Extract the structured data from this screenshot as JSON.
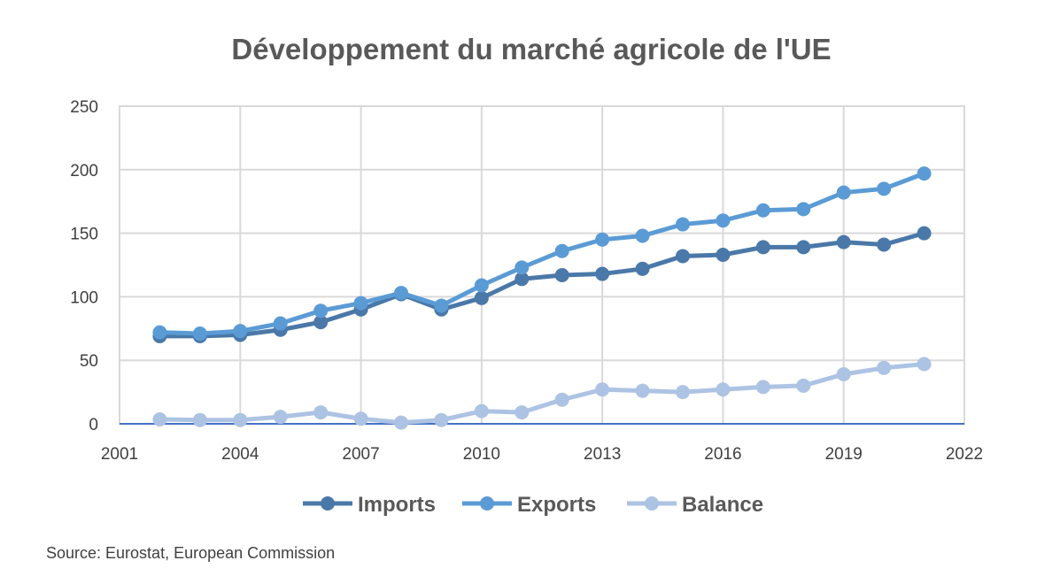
{
  "chart_data": {
    "type": "line",
    "title": "Développement du marché agricole de l'UE",
    "source": "Source: Eurostat, European Commission",
    "x": [
      2002,
      2003,
      2004,
      2005,
      2006,
      2007,
      2008,
      2009,
      2010,
      2011,
      2012,
      2013,
      2014,
      2015,
      2016,
      2017,
      2018,
      2019,
      2020,
      2021
    ],
    "series": [
      {
        "name": "Imports",
        "color": "#4a78a8",
        "values": [
          69,
          69,
          70,
          74,
          80,
          90,
          102,
          90,
          99,
          114,
          117,
          118,
          122,
          132,
          133,
          139,
          139,
          143,
          141,
          150
        ]
      },
      {
        "name": "Exports",
        "color": "#5b9bd5",
        "values": [
          72,
          71,
          73,
          79,
          89,
          95,
          103,
          93,
          109,
          123,
          136,
          145,
          148,
          157,
          160,
          168,
          169,
          182,
          185,
          197
        ]
      },
      {
        "name": "Balance",
        "color": "#adc3e3",
        "values": [
          3.5,
          3,
          3,
          5.5,
          9,
          4,
          1,
          3,
          10,
          9,
          19,
          27,
          26,
          25,
          27,
          29,
          30,
          39,
          44,
          47
        ]
      }
    ],
    "xlim": [
      2001,
      2022
    ],
    "xticks": [
      2001,
      2004,
      2007,
      2010,
      2013,
      2016,
      2019,
      2022
    ],
    "ylim": [
      0,
      250
    ],
    "yticks": [
      0,
      50,
      100,
      150,
      200,
      250
    ],
    "grid": true,
    "legend": "bottom"
  }
}
